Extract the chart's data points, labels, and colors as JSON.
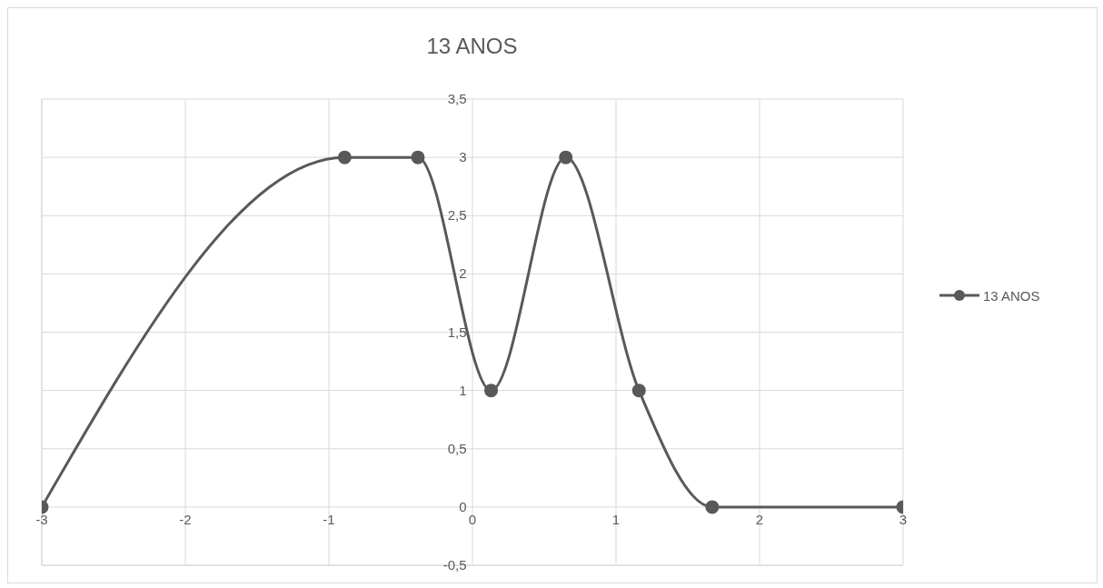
{
  "chart_data": {
    "type": "line",
    "title": "13 ANOS",
    "x": [
      -3,
      -0.89,
      -0.38,
      0.13,
      0.65,
      1.16,
      1.67,
      3
    ],
    "series": [
      {
        "name": "13 ANOS",
        "color": "#595959",
        "values": [
          0,
          3,
          3,
          1,
          3,
          1,
          0,
          0
        ]
      }
    ],
    "xlim": [
      -3,
      3
    ],
    "xticks": [
      -3,
      -2,
      -1,
      0,
      1,
      2,
      3
    ],
    "ylim": [
      -0.5,
      3.5
    ],
    "yticks": [
      {
        "value": -0.5,
        "label": "-0,5"
      },
      0,
      {
        "value": 0.5,
        "label": "0,5"
      },
      1,
      {
        "value": 1.5,
        "label": "1,5"
      },
      2,
      {
        "value": 2.5,
        "label": "2,5"
      },
      3,
      {
        "value": 3.5,
        "label": "3,5"
      }
    ],
    "grid": true,
    "legend": "right",
    "marker": "circle",
    "line_style": "solid"
  }
}
